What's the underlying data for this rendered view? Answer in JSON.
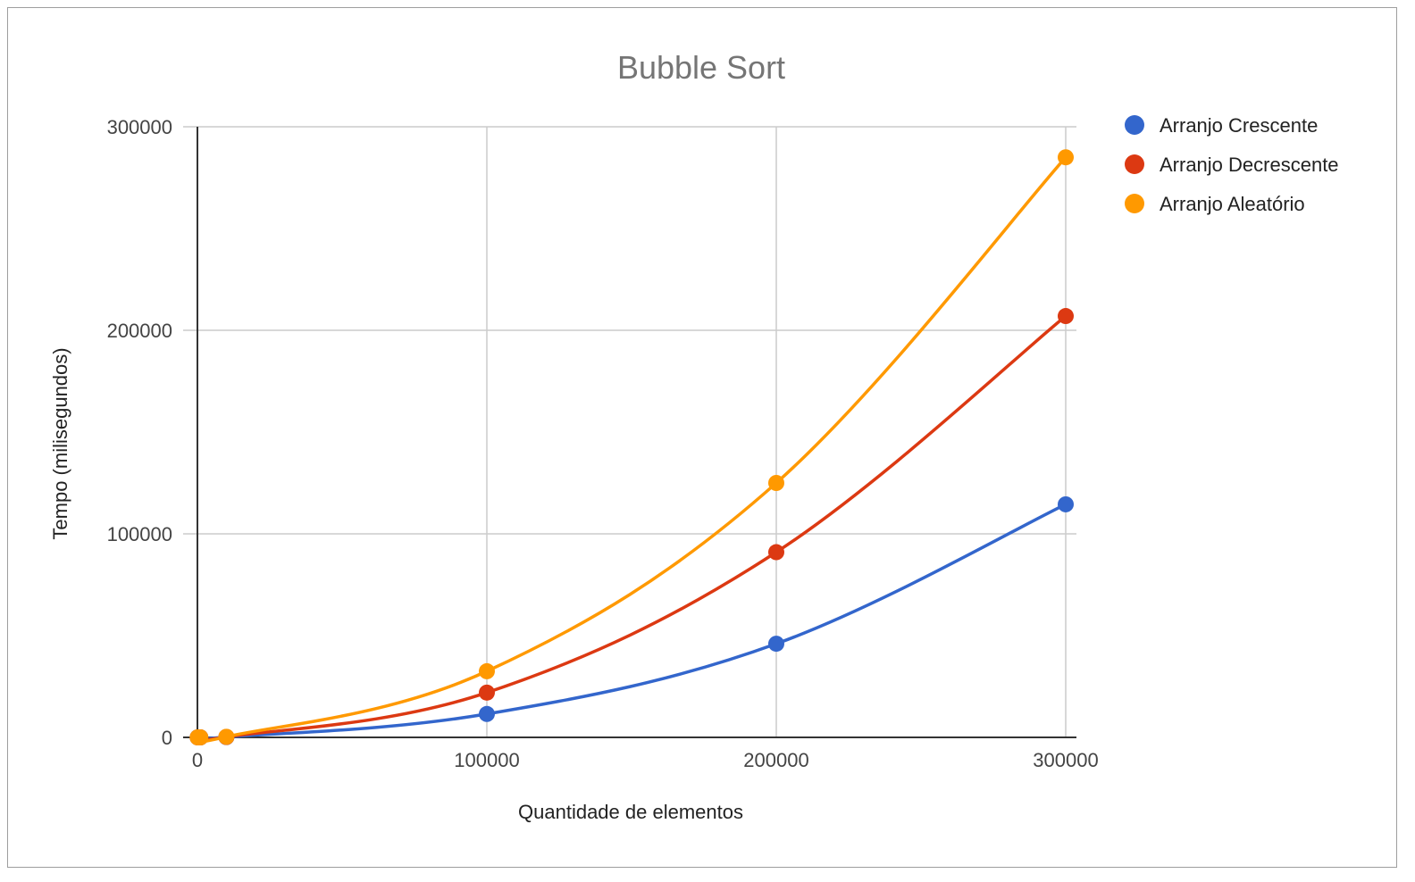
{
  "chart_data": {
    "type": "line",
    "title": "Bubble Sort",
    "xlabel": "Quantidade de elementos",
    "ylabel": "Tempo (milisegundos)",
    "xlim": [
      0,
      300000
    ],
    "ylim": [
      0,
      300000
    ],
    "xticks": [
      0,
      100000,
      200000,
      300000
    ],
    "yticks": [
      0,
      100000,
      200000,
      300000
    ],
    "x": [
      100,
      1000,
      10000,
      100000,
      200000,
      300000
    ],
    "grid": true,
    "smooth": true,
    "legend_position": "right",
    "series": [
      {
        "name": "Arranjo Crescente",
        "color": "#3366cc",
        "values": [
          0,
          0,
          150,
          11500,
          46000,
          114500
        ]
      },
      {
        "name": "Arranjo Decrescente",
        "color": "#dc3912",
        "values": [
          0,
          0,
          220,
          22000,
          91000,
          207000
        ]
      },
      {
        "name": "Arranjo Aleatório",
        "color": "#ff9900",
        "values": [
          0,
          0,
          300,
          32500,
          125000,
          285000
        ]
      }
    ]
  }
}
